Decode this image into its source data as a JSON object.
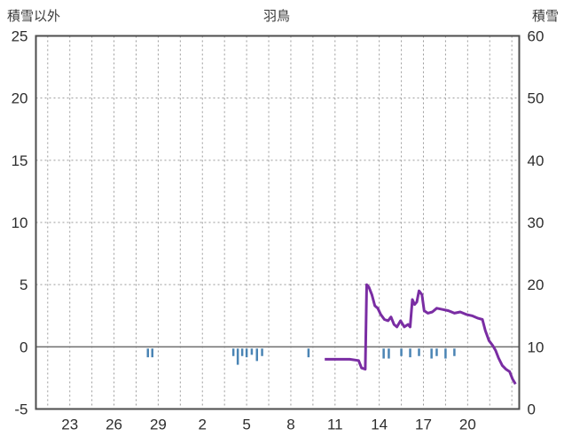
{
  "chart_data": {
    "type": "line",
    "title": "羽鳥",
    "left_axis": {
      "label": "積雪以外",
      "min": -5,
      "max": 25,
      "ticks": [
        25,
        20,
        15,
        10,
        5,
        0,
        -5
      ]
    },
    "right_axis": {
      "label": "積雪",
      "min": 0,
      "max": 60,
      "ticks": [
        60,
        50,
        40,
        30,
        20,
        10,
        0
      ]
    },
    "x_axis": {
      "domain": [
        20.7,
        53.5
      ],
      "tick_days": [
        23,
        26,
        29,
        32,
        35,
        38,
        41,
        44,
        47,
        50
      ],
      "tick_labels": [
        "23",
        "26",
        "29",
        "2",
        "5",
        "8",
        "11",
        "14",
        "17",
        "20"
      ],
      "grid_start": 21.5,
      "grid_step": 1.5
    },
    "series": [
      {
        "name": "積雪",
        "type": "line",
        "axis": "right",
        "color": "#7a2da3",
        "points": [
          [
            40.3,
            8
          ],
          [
            41.5,
            8
          ],
          [
            42.0,
            8
          ],
          [
            42.6,
            7.8
          ],
          [
            42.8,
            6.6
          ],
          [
            43.05,
            6.4
          ],
          [
            43.15,
            20
          ],
          [
            43.3,
            19.6
          ],
          [
            43.5,
            18.4
          ],
          [
            43.7,
            16.6
          ],
          [
            43.9,
            16.2
          ],
          [
            44.1,
            15.2
          ],
          [
            44.35,
            14.4
          ],
          [
            44.6,
            14.2
          ],
          [
            44.8,
            14.8
          ],
          [
            45.0,
            13.6
          ],
          [
            45.2,
            13.2
          ],
          [
            45.45,
            14.2
          ],
          [
            45.7,
            13.2
          ],
          [
            45.95,
            13.6
          ],
          [
            46.1,
            13.2
          ],
          [
            46.25,
            17.6
          ],
          [
            46.4,
            16.8
          ],
          [
            46.55,
            17.2
          ],
          [
            46.7,
            19.0
          ],
          [
            46.9,
            18.4
          ],
          [
            47.05,
            15.8
          ],
          [
            47.3,
            15.4
          ],
          [
            47.6,
            15.6
          ],
          [
            47.9,
            16.2
          ],
          [
            48.3,
            16.0
          ],
          [
            48.7,
            15.8
          ],
          [
            49.1,
            15.4
          ],
          [
            49.5,
            15.6
          ],
          [
            49.9,
            15.2
          ],
          [
            50.3,
            15.0
          ],
          [
            50.7,
            14.6
          ],
          [
            51.0,
            14.4
          ],
          [
            51.2,
            12.6
          ],
          [
            51.45,
            11.0
          ],
          [
            51.7,
            10.2
          ],
          [
            51.9,
            9.4
          ],
          [
            52.1,
            8.2
          ],
          [
            52.35,
            7.0
          ],
          [
            52.6,
            6.4
          ],
          [
            52.85,
            6.0
          ],
          [
            53.05,
            4.8
          ],
          [
            53.25,
            4.0
          ]
        ]
      },
      {
        "name": "積雪以外",
        "type": "bar",
        "axis": "left",
        "color": "#4a84b4",
        "points": [
          [
            28.3,
            0.7
          ],
          [
            28.6,
            0.7
          ],
          [
            34.1,
            0.6
          ],
          [
            34.4,
            1.3
          ],
          [
            34.7,
            0.6
          ],
          [
            35.0,
            0.7
          ],
          [
            35.35,
            0.5
          ],
          [
            35.7,
            1.0
          ],
          [
            36.05,
            0.6
          ],
          [
            39.2,
            0.7
          ],
          [
            44.3,
            0.8
          ],
          [
            44.65,
            0.8
          ],
          [
            45.5,
            0.6
          ],
          [
            46.1,
            0.7
          ],
          [
            46.7,
            0.6
          ],
          [
            47.55,
            0.8
          ],
          [
            47.9,
            0.6
          ],
          [
            48.5,
            0.8
          ],
          [
            49.1,
            0.6
          ]
        ]
      }
    ],
    "grid": {
      "color": "#9a9a9a",
      "dash": "2 3"
    },
    "zero_line_color": "#6e6e6e",
    "border_color": "#4d4d4d",
    "text_color": "#2e2e2e"
  }
}
